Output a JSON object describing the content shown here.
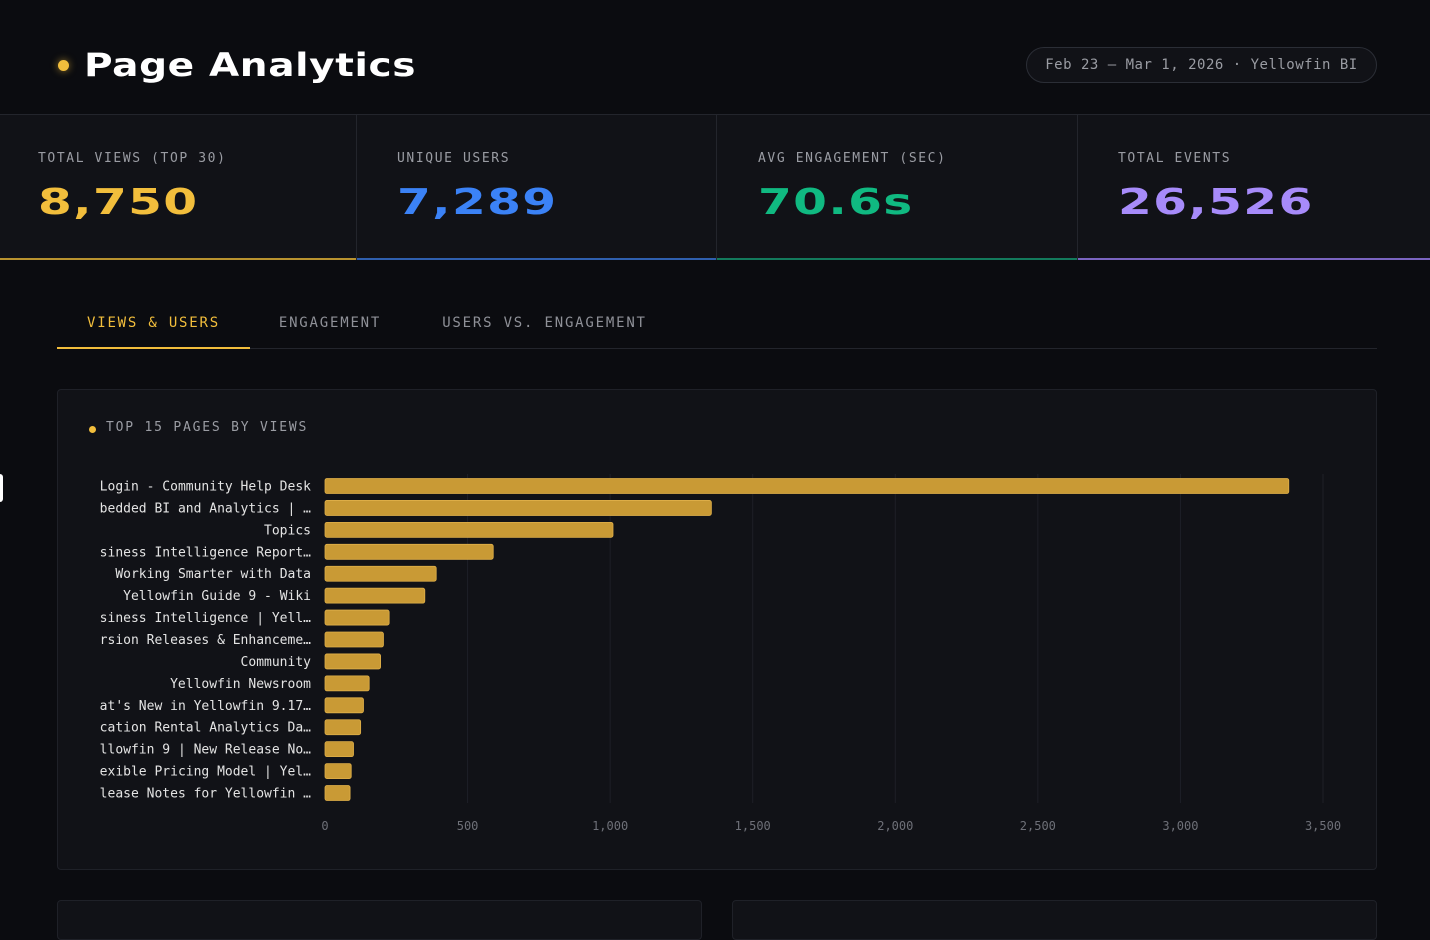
{
  "header": {
    "title": "Page Analytics",
    "date_range": "Feb 23 – Mar 1, 2026 · Yellowfin BI"
  },
  "kpis": [
    {
      "label": "TOTAL VIEWS (TOP 30)",
      "value": "8,750",
      "color": "#f2be3c"
    },
    {
      "label": "UNIQUE USERS",
      "value": "7,289",
      "color": "#3b82f6"
    },
    {
      "label": "AVG ENGAGEMENT (SEC)",
      "value": "70.6s",
      "color": "#10b981"
    },
    {
      "label": "TOTAL EVENTS",
      "value": "26,526",
      "color": "#a78bfa"
    }
  ],
  "tabs": [
    {
      "label": "VIEWS & USERS",
      "active": true
    },
    {
      "label": "ENGAGEMENT",
      "active": false
    },
    {
      "label": "USERS VS. ENGAGEMENT",
      "active": false
    }
  ],
  "panel": {
    "title": "TOP 15 PAGES BY VIEWS"
  },
  "colors": {
    "accent": "#f2be3c",
    "bar": "#c99a35",
    "background": "#0b0c10",
    "card": "#111217"
  },
  "chart_data": {
    "type": "bar",
    "orientation": "horizontal",
    "categories": [
      "Login - Community Help Desk",
      "bedded BI and Analytics | …",
      "Topics",
      "siness Intelligence Report…",
      "Working Smarter with Data",
      "Yellowfin Guide 9 - Wiki",
      "siness Intelligence | Yell…",
      "rsion Releases & Enhanceme…",
      "Community",
      "Yellowfin Newsroom",
      "at's New in Yellowfin 9.17…",
      "cation Rental Analytics Da…",
      "llowfin 9 | New Release No…",
      "exible Pricing Model | Yel…",
      "lease Notes for Yellowfin …"
    ],
    "values": [
      3380,
      1355,
      1010,
      590,
      390,
      350,
      225,
      205,
      195,
      155,
      135,
      125,
      100,
      92,
      88
    ],
    "xlim": [
      0,
      3500
    ],
    "xticks": [
      "0",
      "500",
      "1,000",
      "1,500",
      "2,000",
      "2,500",
      "3,000",
      "3,500"
    ],
    "xtick_values": [
      0,
      500,
      1000,
      1500,
      2000,
      2500,
      3000,
      3500
    ],
    "grid": "vertical"
  }
}
